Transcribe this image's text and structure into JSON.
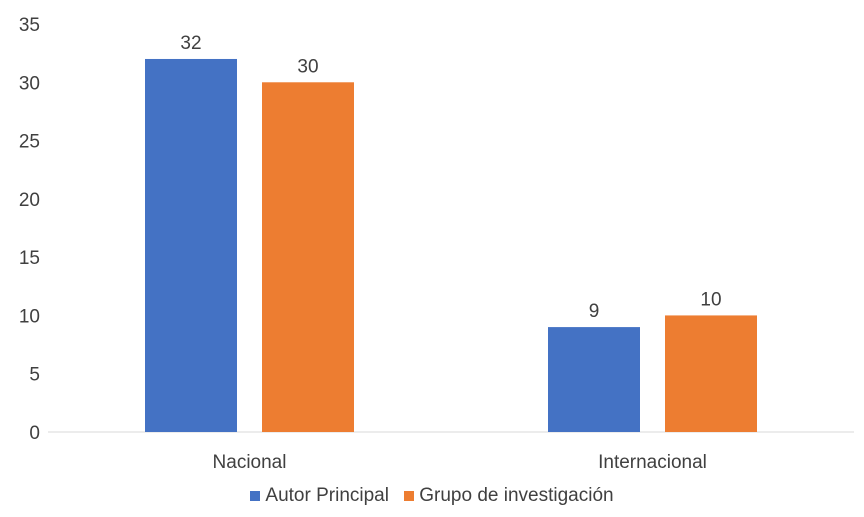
{
  "chart_data": {
    "type": "bar",
    "title": "",
    "xlabel": "",
    "ylabel": "",
    "categories": [
      "Nacional",
      "Internacional"
    ],
    "series": [
      {
        "name": "Autor Principal",
        "values": [
          32,
          9
        ],
        "color": "#4472C4"
      },
      {
        "name": "Grupo de investigación",
        "values": [
          30,
          10
        ],
        "color": "#ED7D31"
      }
    ],
    "ylim": [
      0,
      35
    ],
    "yticks": [
      0,
      5,
      10,
      15,
      20,
      25,
      30,
      35
    ],
    "grid": false,
    "data_labels": true,
    "legend_position": "bottom"
  }
}
